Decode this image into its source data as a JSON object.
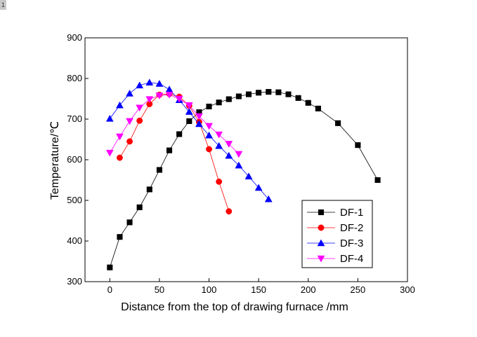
{
  "corner_label": "1",
  "chart_data": {
    "type": "line",
    "title": "",
    "xlabel": "Distance from the top of drawing furnace /mm",
    "ylabel": "Temperature/℃",
    "xlim": [
      -25,
      300
    ],
    "ylim": [
      300,
      900
    ],
    "xticks": [
      0,
      50,
      100,
      150,
      200,
      250,
      300
    ],
    "yticks": [
      300,
      400,
      500,
      600,
      700,
      800,
      900
    ],
    "grid": false,
    "legend_position": "bottom-right",
    "series": [
      {
        "name": "DF-1",
        "color": "#000000",
        "marker": "square",
        "x": [
          0,
          10,
          20,
          30,
          40,
          50,
          60,
          70,
          80,
          90,
          100,
          110,
          120,
          130,
          140,
          150,
          160,
          170,
          180,
          190,
          200,
          210,
          230,
          250,
          270
        ],
        "y": [
          335,
          410,
          446,
          483,
          527,
          575,
          623,
          663,
          695,
          717,
          731,
          741,
          749,
          756,
          761,
          765,
          767,
          766,
          761,
          752,
          740,
          726,
          690,
          636,
          550
        ]
      },
      {
        "name": "DF-2",
        "color": "#ff0000",
        "marker": "circle",
        "x": [
          10,
          20,
          30,
          40,
          50,
          60,
          70,
          80,
          90,
          100,
          110,
          120
        ],
        "y": [
          605,
          645,
          696,
          737,
          760,
          762,
          755,
          733,
          693,
          626,
          546,
          473
        ]
      },
      {
        "name": "DF-3",
        "color": "#0000ff",
        "marker": "triangle-up",
        "x": [
          0,
          10,
          20,
          30,
          40,
          50,
          60,
          70,
          80,
          90,
          100,
          110,
          120,
          130,
          140,
          150,
          160
        ],
        "y": [
          701,
          734,
          763,
          783,
          790,
          787,
          773,
          747,
          718,
          688,
          660,
          634,
          610,
          586,
          559,
          531,
          503
        ]
      },
      {
        "name": "DF-4",
        "color": "#ff00ff",
        "marker": "triangle-down",
        "x": [
          0,
          10,
          20,
          30,
          40,
          50,
          60,
          70,
          80,
          90,
          100,
          110,
          120,
          130
        ],
        "y": [
          617,
          657,
          695,
          728,
          749,
          758,
          760,
          750,
          734,
          707,
          683,
          662,
          639,
          614
        ]
      }
    ]
  }
}
